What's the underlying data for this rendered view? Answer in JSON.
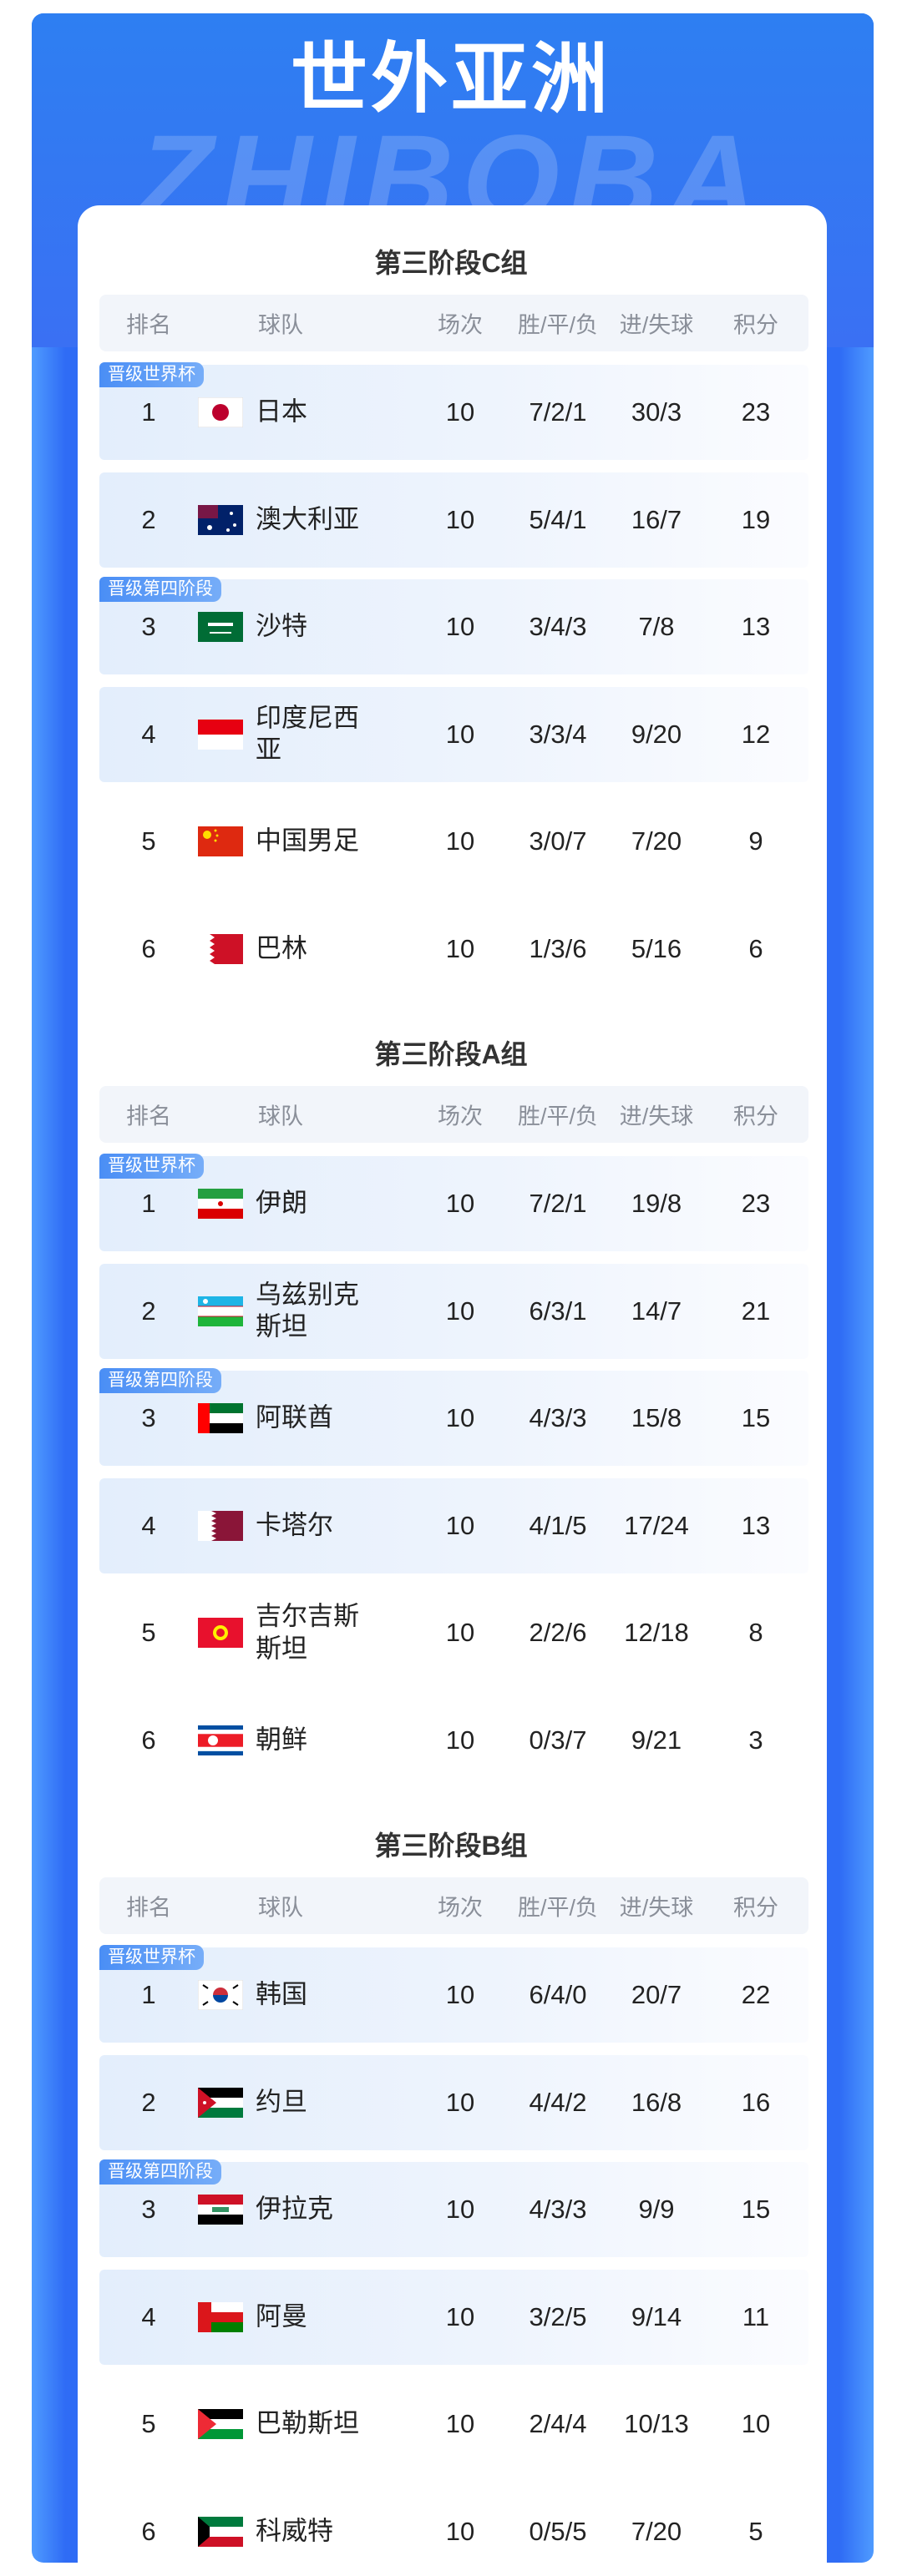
{
  "header": {
    "title": "世外亚洲",
    "watermark": "ZHIBOBA"
  },
  "groups": [
    {
      "title": "第三阶段C组",
      "headers": [
        "排名",
        "球队",
        "场次",
        "胜/平/负",
        "进/失球",
        "积分"
      ],
      "rows": [
        {
          "badge": "晋级世界杯",
          "rank": 1,
          "team": "日本",
          "played": 10,
          "record": "7/2/1",
          "goals": "30/3",
          "points": 23
        },
        {
          "rank": 2,
          "team": "澳大利亚",
          "played": 10,
          "record": "5/4/1",
          "goals": "16/7",
          "points": 19
        },
        {
          "badge": "晋级第四阶段",
          "rank": 3,
          "team": "沙特",
          "played": 10,
          "record": "3/4/3",
          "goals": "7/8",
          "points": 13
        },
        {
          "rank": 4,
          "team": "印度尼西亚",
          "played": 10,
          "record": "3/3/4",
          "goals": "9/20",
          "points": 12
        },
        {
          "rank": 5,
          "team": "中国男足",
          "played": 10,
          "record": "3/0/7",
          "goals": "7/20",
          "points": 9
        },
        {
          "rank": 6,
          "team": "巴林",
          "played": 10,
          "record": "1/3/6",
          "goals": "5/16",
          "points": 6
        }
      ]
    },
    {
      "title": "第三阶段A组",
      "headers": [
        "排名",
        "球队",
        "场次",
        "胜/平/负",
        "进/失球",
        "积分"
      ],
      "rows": [
        {
          "badge": "晋级世界杯",
          "rank": 1,
          "team": "伊朗",
          "played": 10,
          "record": "7/2/1",
          "goals": "19/8",
          "points": 23
        },
        {
          "rank": 2,
          "team": "乌兹别克斯坦",
          "played": 10,
          "record": "6/3/1",
          "goals": "14/7",
          "points": 21
        },
        {
          "badge": "晋级第四阶段",
          "rank": 3,
          "team": "阿联酋",
          "played": 10,
          "record": "4/3/3",
          "goals": "15/8",
          "points": 15
        },
        {
          "rank": 4,
          "team": "卡塔尔",
          "played": 10,
          "record": "4/1/5",
          "goals": "17/24",
          "points": 13
        },
        {
          "rank": 5,
          "team": "吉尔吉斯斯坦",
          "played": 10,
          "record": "2/2/6",
          "goals": "12/18",
          "points": 8
        },
        {
          "rank": 6,
          "team": "朝鲜",
          "played": 10,
          "record": "0/3/7",
          "goals": "9/21",
          "points": 3
        }
      ]
    },
    {
      "title": "第三阶段B组",
      "headers": [
        "排名",
        "球队",
        "场次",
        "胜/平/负",
        "进/失球",
        "积分"
      ],
      "rows": [
        {
          "badge": "晋级世界杯",
          "rank": 1,
          "team": "韩国",
          "played": 10,
          "record": "6/4/0",
          "goals": "20/7",
          "points": 22
        },
        {
          "rank": 2,
          "team": "约旦",
          "played": 10,
          "record": "4/4/2",
          "goals": "16/8",
          "points": 16
        },
        {
          "badge": "晋级第四阶段",
          "rank": 3,
          "team": "伊拉克",
          "played": 10,
          "record": "4/3/3",
          "goals": "9/9",
          "points": 15
        },
        {
          "rank": 4,
          "team": "阿曼",
          "played": 10,
          "record": "3/2/5",
          "goals": "9/14",
          "points": 11
        },
        {
          "rank": 5,
          "team": "巴勒斯坦",
          "played": 10,
          "record": "2/4/4",
          "goals": "10/13",
          "points": 10
        },
        {
          "rank": 6,
          "team": "科威特",
          "played": 10,
          "record": "0/5/5",
          "goals": "7/20",
          "points": 5
        }
      ]
    }
  ]
}
